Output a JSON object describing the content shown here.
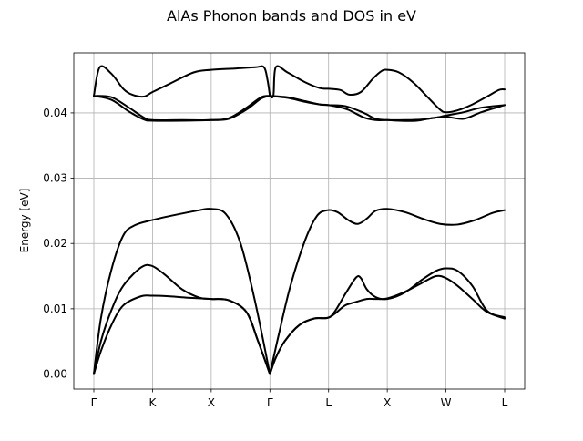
{
  "chart_data": {
    "type": "line",
    "title": "AlAs Phonon bands and DOS in eV",
    "xlabel": "",
    "ylabel": "Energy [eV]",
    "ylim": [
      -0.0023,
      0.0492
    ],
    "yticks": [
      0.0,
      0.01,
      0.02,
      0.03,
      0.04
    ],
    "ytick_labels": [
      "0.00",
      "0.01",
      "0.02",
      "0.03",
      "0.04"
    ],
    "k_path_labels": [
      "Γ",
      "K",
      "X",
      "Γ",
      "L",
      "X",
      "W",
      "L"
    ],
    "k_path_positions": [
      0,
      1,
      2,
      3,
      4,
      5,
      6,
      7
    ],
    "grid": true,
    "legend": "none",
    "line_color": "#000000",
    "series": [
      {
        "x": [
          0,
          0.12,
          0.3,
          0.5,
          0.8,
          1.0,
          1.3,
          1.6,
          2.0,
          2.3,
          2.6,
          2.8,
          3.0
        ],
        "values": [
          0.0,
          0.0035,
          0.0075,
          0.0105,
          0.0119,
          0.012,
          0.0119,
          0.0117,
          0.0115,
          0.0113,
          0.0095,
          0.005,
          0.0
        ]
      },
      {
        "x": [
          0,
          0.12,
          0.3,
          0.5,
          0.8,
          0.98,
          1.2,
          1.5,
          1.8,
          2.0,
          2.3,
          2.6,
          2.8,
          3.0
        ],
        "values": [
          0.0,
          0.005,
          0.0098,
          0.0135,
          0.0163,
          0.0166,
          0.0153,
          0.013,
          0.0117,
          0.0115,
          0.0113,
          0.0095,
          0.005,
          0.0
        ]
      },
      {
        "x": [
          0,
          0.12,
          0.3,
          0.5,
          0.7,
          1.0,
          1.4,
          1.8,
          2.0,
          2.25,
          2.5,
          2.75,
          3.0
        ],
        "values": [
          0.0,
          0.0085,
          0.016,
          0.0212,
          0.0228,
          0.0236,
          0.0244,
          0.0251,
          0.0253,
          0.0245,
          0.02,
          0.011,
          0.0
        ]
      },
      {
        "x": [
          0,
          0.3,
          0.6,
          0.85,
          1.0,
          1.5,
          2.0,
          2.3,
          2.6,
          2.85,
          3.0
        ],
        "values": [
          0.0426,
          0.0424,
          0.0408,
          0.0393,
          0.0389,
          0.0389,
          0.0389,
          0.0392,
          0.0408,
          0.0424,
          0.0426
        ]
      },
      {
        "x": [
          0,
          0.3,
          0.6,
          0.85,
          1.0,
          1.5,
          2.0,
          2.3,
          2.6,
          2.85,
          3.0
        ],
        "values": [
          0.0426,
          0.042,
          0.0402,
          0.039,
          0.0388,
          0.0388,
          0.0389,
          0.0391,
          0.0405,
          0.0422,
          0.0426
        ]
      },
      {
        "x": [
          0,
          0.1,
          0.3,
          0.5,
          0.65,
          0.85,
          1.0,
          1.3,
          1.7,
          2.0,
          2.4,
          2.75,
          2.9,
          2.96,
          3.0
        ],
        "values": [
          0.0426,
          0.047,
          0.046,
          0.0437,
          0.0428,
          0.0425,
          0.0432,
          0.0445,
          0.0462,
          0.0466,
          0.0468,
          0.047,
          0.047,
          0.045,
          0.0426
        ]
      },
      {
        "x": [
          3.0,
          3.1,
          3.25,
          3.5,
          3.75,
          3.98,
          4.1,
          4.28,
          4.45,
          4.65,
          4.8,
          5.0,
          5.3,
          5.6,
          5.83,
          6.0,
          6.2,
          6.45,
          6.7,
          7.0
        ],
        "values": [
          0.0,
          0.0025,
          0.005,
          0.0075,
          0.0085,
          0.0086,
          0.0092,
          0.0105,
          0.011,
          0.0115,
          0.0115,
          0.0116,
          0.0126,
          0.014,
          0.015,
          0.0147,
          0.0135,
          0.0115,
          0.0095,
          0.0085
        ]
      },
      {
        "x": [
          3.0,
          3.1,
          3.25,
          3.5,
          3.75,
          3.98,
          4.1,
          4.3,
          4.47,
          4.55,
          4.65,
          4.8,
          5.0,
          5.3,
          5.6,
          5.83,
          6.0,
          6.2,
          6.45,
          6.7,
          7.0
        ],
        "values": [
          0.0,
          0.0025,
          0.005,
          0.0075,
          0.0085,
          0.0086,
          0.0095,
          0.0125,
          0.0148,
          0.0147,
          0.013,
          0.0118,
          0.0115,
          0.0125,
          0.0145,
          0.0158,
          0.0162,
          0.0158,
          0.0135,
          0.0097,
          0.0087
        ]
      },
      {
        "x": [
          3.0,
          3.15,
          3.35,
          3.6,
          3.8,
          3.98,
          4.15,
          4.35,
          4.5,
          4.65,
          4.8,
          5.0,
          5.3,
          5.6,
          5.9,
          6.2,
          6.5,
          6.8,
          7.0
        ],
        "values": [
          0.0,
          0.006,
          0.0135,
          0.0205,
          0.0242,
          0.0251,
          0.0248,
          0.0235,
          0.023,
          0.0238,
          0.025,
          0.0253,
          0.0248,
          0.0238,
          0.023,
          0.0229,
          0.0236,
          0.0247,
          0.0251
        ]
      },
      {
        "x": [
          3.0,
          3.3,
          3.6,
          3.85,
          4.0,
          4.3,
          4.6,
          4.8,
          5.0,
          5.3,
          5.6,
          5.85,
          6.0,
          6.3,
          6.6,
          7.0
        ],
        "values": [
          0.0426,
          0.0424,
          0.0418,
          0.0413,
          0.0412,
          0.041,
          0.04,
          0.0391,
          0.0389,
          0.0389,
          0.039,
          0.0393,
          0.0396,
          0.0401,
          0.0408,
          0.0412
        ]
      },
      {
        "x": [
          3.0,
          3.3,
          3.6,
          3.85,
          4.0,
          4.3,
          4.6,
          4.8,
          5.0,
          5.2,
          5.5,
          5.75,
          6.0,
          6.3,
          6.6,
          7.0
        ],
        "values": [
          0.0426,
          0.0423,
          0.0417,
          0.0413,
          0.0412,
          0.0406,
          0.0393,
          0.0389,
          0.0389,
          0.0388,
          0.0388,
          0.0392,
          0.0394,
          0.0391,
          0.0401,
          0.0412
        ]
      },
      {
        "x": [
          3.0,
          3.06,
          3.1,
          3.3,
          3.6,
          3.85,
          4.0,
          4.2,
          4.35,
          4.55,
          4.75,
          4.9,
          5.0,
          5.2,
          5.45,
          5.7,
          5.9,
          6.0,
          6.2,
          6.45,
          6.7,
          6.9,
          7.0
        ],
        "values": [
          0.0426,
          0.0427,
          0.047,
          0.0462,
          0.0447,
          0.0438,
          0.0437,
          0.0435,
          0.0428,
          0.0432,
          0.0452,
          0.0464,
          0.0466,
          0.0462,
          0.0446,
          0.0423,
          0.0405,
          0.0401,
          0.0404,
          0.0413,
          0.0425,
          0.0435,
          0.0436
        ]
      }
    ]
  }
}
